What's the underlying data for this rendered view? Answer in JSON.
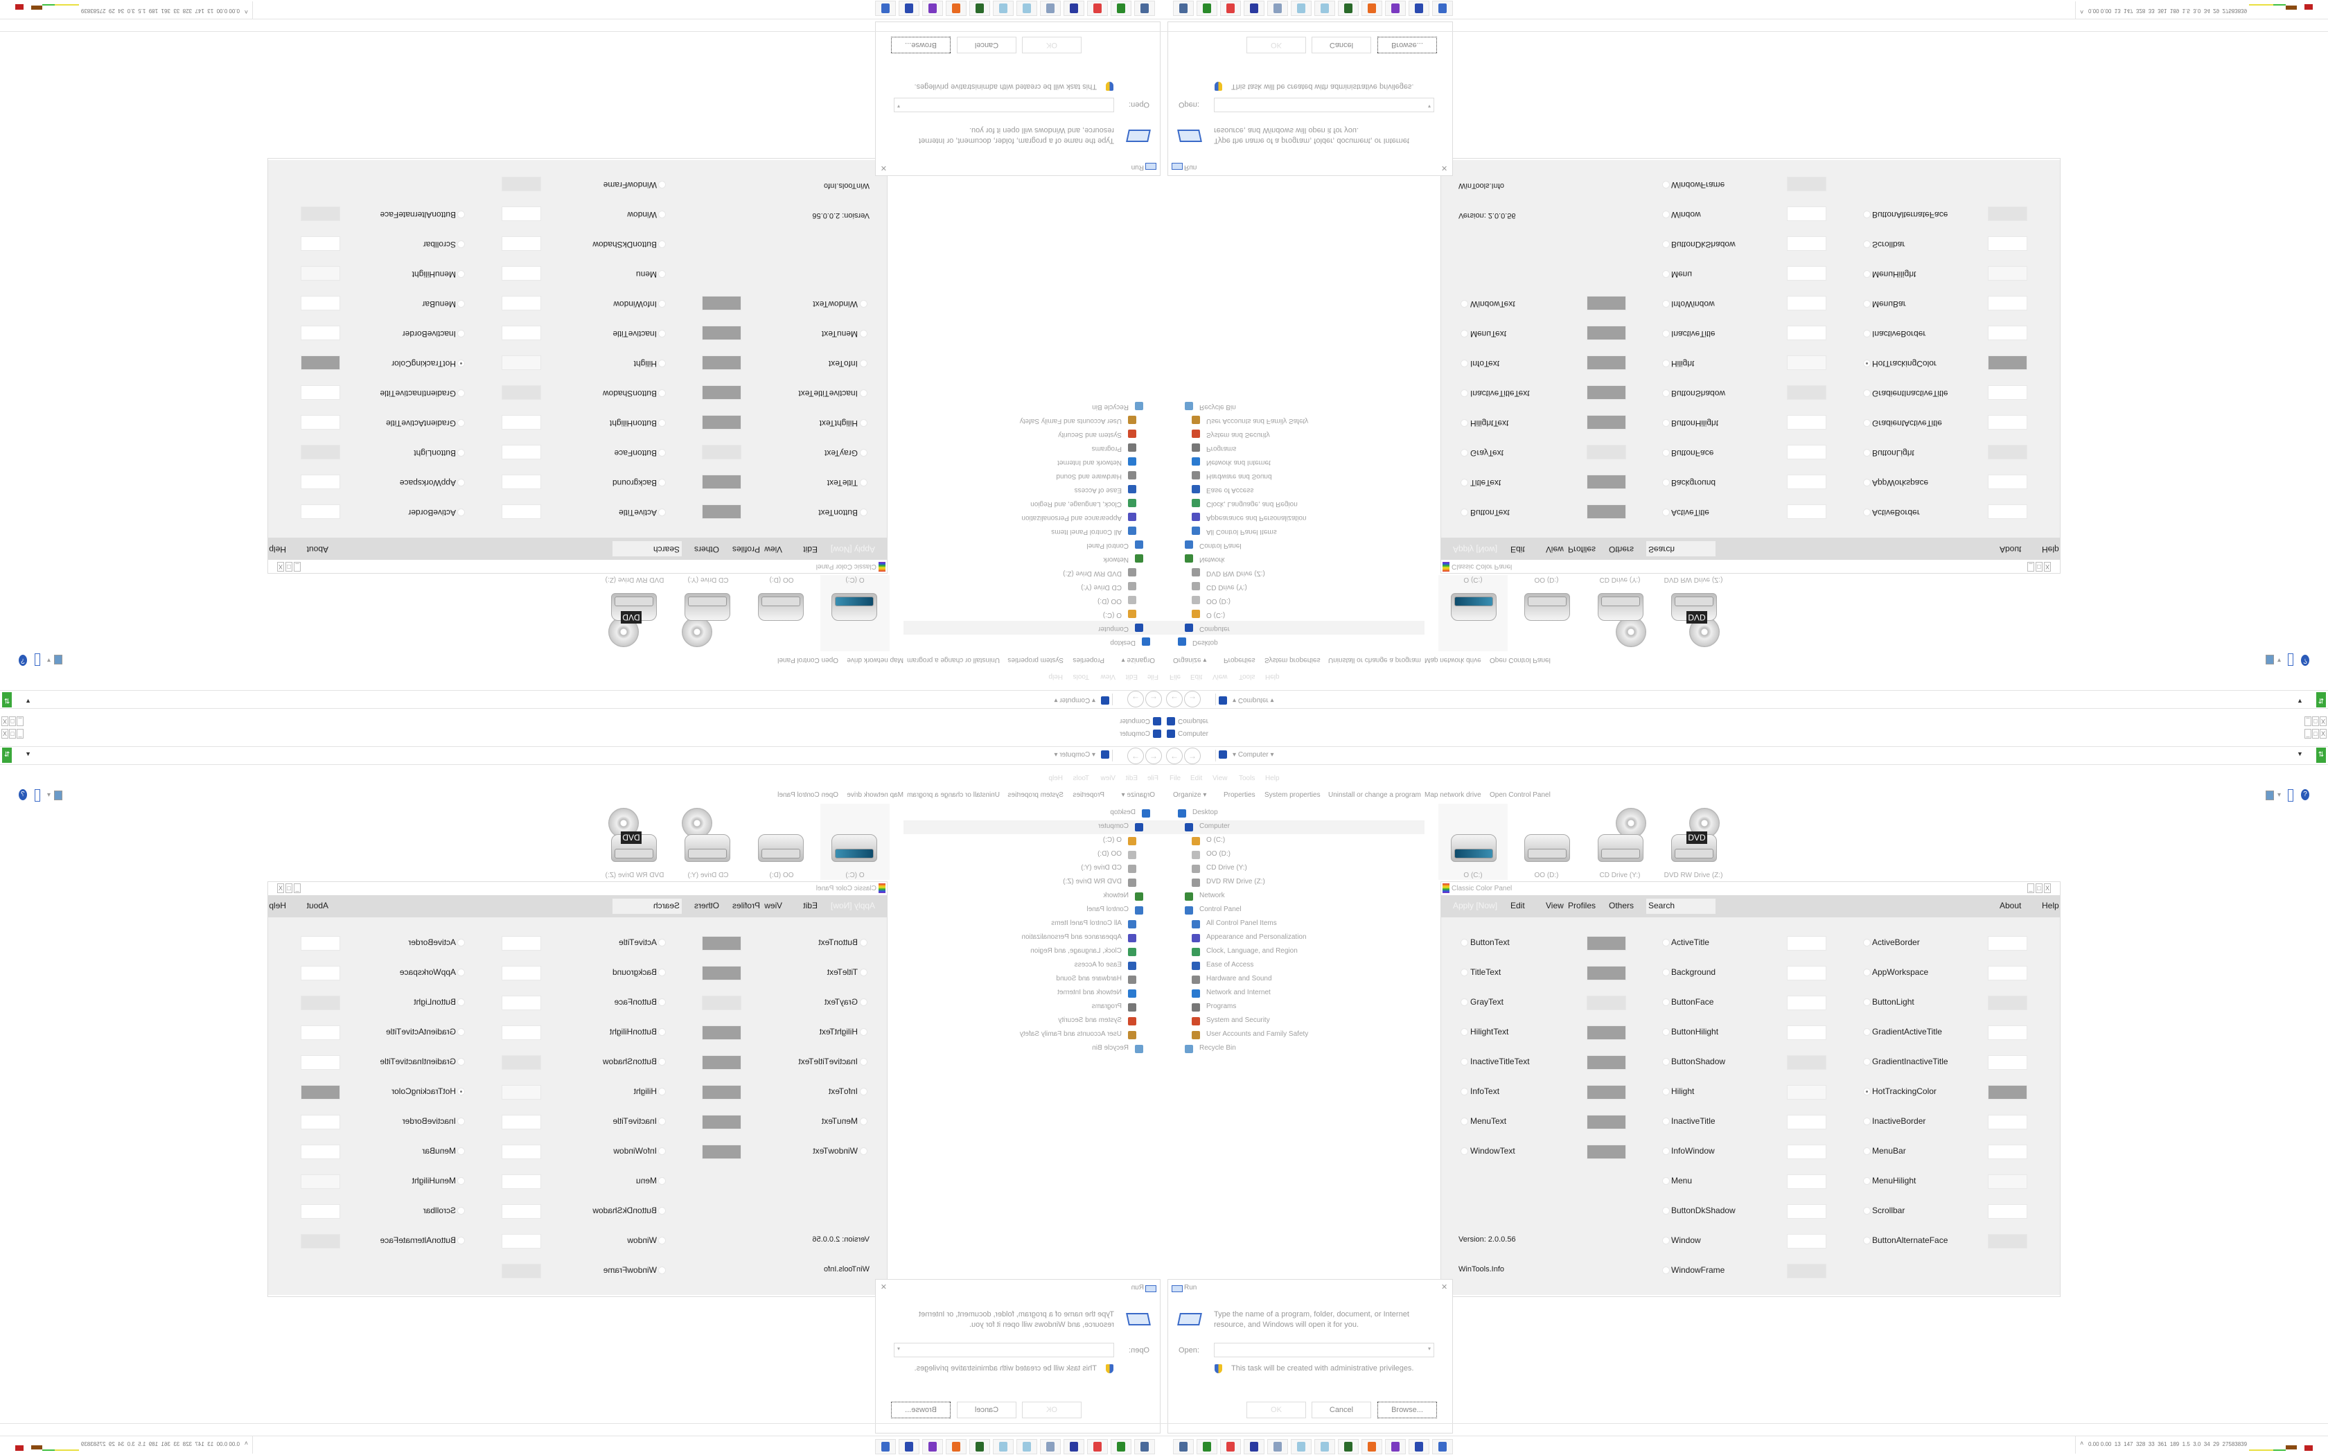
{
  "explorer": {
    "title": "Computer",
    "address": "Computer",
    "menu": [
      "File",
      "Edit",
      "View",
      "Tools",
      "Help"
    ],
    "toolbar": [
      "Organize ▾",
      "Properties",
      "System properties",
      "Uninstall or change a program",
      "Map network drive",
      "Open Control Panel"
    ],
    "nav": [
      {
        "label": "Desktop",
        "level": 0,
        "icon": "desktop-icon",
        "color": "#2a6fc9"
      },
      {
        "label": "Computer",
        "level": 1,
        "icon": "computer-icon",
        "color": "#1f4fb0",
        "selected": true
      },
      {
        "label": "O (C:)",
        "level": 2,
        "icon": "system-drive-icon",
        "color": "#e0a030"
      },
      {
        "label": "OO (D:)",
        "level": 2,
        "icon": "drive-icon",
        "color": "#bbbbbb"
      },
      {
        "label": "CD Drive (Y:)",
        "level": 2,
        "icon": "cd-drive-icon",
        "color": "#aaaaaa"
      },
      {
        "label": "DVD RW Drive (Z:)",
        "level": 2,
        "icon": "dvd-drive-icon",
        "color": "#999999"
      },
      {
        "label": "Network",
        "level": 1,
        "icon": "network-icon",
        "color": "#3a8a3a"
      },
      {
        "label": "Control Panel",
        "level": 1,
        "icon": "control-panel-icon",
        "color": "#3a78c8"
      },
      {
        "label": "All Control Panel Items",
        "level": 2,
        "icon": "control-panel-icon",
        "color": "#3a78c8"
      },
      {
        "label": "Appearance and Personalization",
        "level": 2,
        "icon": "appearance-icon",
        "color": "#5050c0"
      },
      {
        "label": "Clock, Language, and Region",
        "level": 2,
        "icon": "clock-globe-icon",
        "color": "#3a9a5a"
      },
      {
        "label": "Ease of Access",
        "level": 2,
        "icon": "ease-of-access-icon",
        "color": "#2a5fb8"
      },
      {
        "label": "Hardware and Sound",
        "level": 2,
        "icon": "hardware-icon",
        "color": "#888888"
      },
      {
        "label": "Network and Internet",
        "level": 2,
        "icon": "network-internet-icon",
        "color": "#2a7ad0"
      },
      {
        "label": "Programs",
        "level": 2,
        "icon": "programs-icon",
        "color": "#777777"
      },
      {
        "label": "System and Security",
        "level": 2,
        "icon": "system-security-icon",
        "color": "#d04a2a"
      },
      {
        "label": "User Accounts and Family Safety",
        "level": 2,
        "icon": "users-icon",
        "color": "#c08a30"
      },
      {
        "label": "Recycle Bin",
        "level": 1,
        "icon": "recycle-bin-icon",
        "color": "#6aa0d0"
      }
    ],
    "drives": [
      {
        "label": "O (C:)",
        "type": "system",
        "selected": true
      },
      {
        "label": "OO (D:)",
        "type": "hdd"
      },
      {
        "label": "CD Drive (Y:)",
        "type": "cd"
      },
      {
        "label": "DVD RW Drive (Z:)",
        "type": "dvd",
        "badge": "DVD"
      }
    ]
  },
  "color_panel": {
    "title": "Classic Color Panel",
    "apply": "Apply [Now]",
    "menu": [
      "Edit",
      "View",
      "Profiles",
      "Others"
    ],
    "search": "Search",
    "about": "About",
    "help": "Help",
    "version": "Version: 2.0.0.56",
    "site": "WinTools.Info",
    "columns": [
      [
        {
          "name": "ButtonText",
          "color": "#a0a0a0"
        },
        {
          "name": "TitleText",
          "color": "#a0a0a0"
        },
        {
          "name": "GrayText",
          "color": "#e3e3e3"
        },
        {
          "name": "HilightText",
          "color": "#a0a0a0"
        },
        {
          "name": "InactiveTitleText",
          "color": "#a0a0a0"
        },
        {
          "name": "InfoText",
          "color": "#a0a0a0"
        },
        {
          "name": "MenuText",
          "color": "#a0a0a0"
        },
        {
          "name": "WindowText",
          "color": "#a0a0a0"
        }
      ],
      [
        {
          "name": "ActiveTitle",
          "color": "#ffffff"
        },
        {
          "name": "Background",
          "color": "#ffffff"
        },
        {
          "name": "ButtonFace",
          "color": "#ffffff"
        },
        {
          "name": "ButtonHilight",
          "color": "#ffffff"
        },
        {
          "name": "ButtonShadow",
          "color": "#e3e3e3"
        },
        {
          "name": "Hilight",
          "color": "#f7f7f7"
        },
        {
          "name": "InactiveTitle",
          "color": "#ffffff"
        },
        {
          "name": "InfoWindow",
          "color": "#ffffff"
        },
        {
          "name": "Menu",
          "color": "#ffffff"
        },
        {
          "name": "ButtonDkShadow",
          "color": "#ffffff"
        },
        {
          "name": "Window",
          "color": "#ffffff"
        },
        {
          "name": "WindowFrame",
          "color": "#e3e3e3"
        }
      ],
      [
        {
          "name": "ActiveBorder",
          "color": "#ffffff"
        },
        {
          "name": "AppWorkspace",
          "color": "#ffffff"
        },
        {
          "name": "ButtonLight",
          "color": "#e3e3e3"
        },
        {
          "name": "GradientActiveTitle",
          "color": "#ffffff"
        },
        {
          "name": "GradientInactiveTitle",
          "color": "#ffffff"
        },
        {
          "name": "HotTrackingColor",
          "color": "#a0a0a0",
          "selected": true
        },
        {
          "name": "InactiveBorder",
          "color": "#ffffff"
        },
        {
          "name": "MenuBar",
          "color": "#ffffff"
        },
        {
          "name": "MenuHilight",
          "color": "#f7f7f7"
        },
        {
          "name": "Scrollbar",
          "color": "#ffffff"
        },
        {
          "name": "ButtonAlternateFace",
          "color": "#e3e3e3"
        }
      ]
    ]
  },
  "run": {
    "title": "Run",
    "description_line1": "Type the name of a program, folder, document, or Internet",
    "description_line2": "resource, and Windows will open it for you.",
    "open_label": "Open:",
    "open_value": "",
    "admin_note": "This task will be created with administrative privileges.",
    "ok": "OK",
    "cancel": "Cancel",
    "browse": "Browse..."
  },
  "taskbar": {
    "icons": [
      {
        "name": "camera-monitor-icon",
        "color": "#4a6a9a"
      },
      {
        "name": "usb-drive-icon",
        "color": "#2a8a2a"
      },
      {
        "name": "rainbow-color-icon",
        "color": "#e04040"
      },
      {
        "name": "floppy-64-icon",
        "color": "#2a3aa0"
      },
      {
        "name": "registry-icon",
        "color": "#8aa0c0"
      },
      {
        "name": "notepad-icon",
        "color": "#9ac8e0"
      },
      {
        "name": "notepad-icon",
        "color": "#9ac8e0"
      },
      {
        "name": "task-monitor-icon",
        "color": "#2a6a2a"
      },
      {
        "name": "firefox-icon",
        "color": "#e86a20"
      },
      {
        "name": "purple-app-icon",
        "color": "#7a3ac0"
      },
      {
        "name": "computer-icon",
        "color": "#2a4ab0"
      },
      {
        "name": "run-icon",
        "color": "#3a6ac8"
      }
    ],
    "tray_text": "0.00 0.00  13  147  328  33  361  189  1.5  3.0  34  29  27583839"
  }
}
